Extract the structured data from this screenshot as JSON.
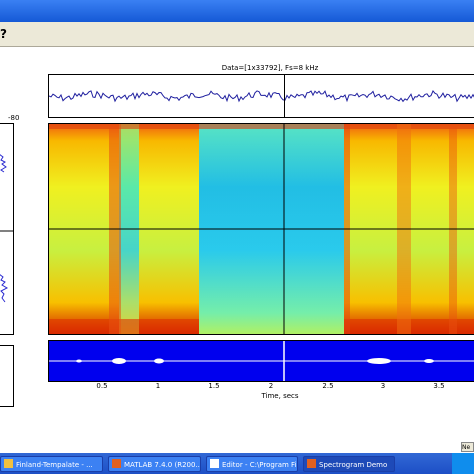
{
  "window": {
    "help_icon": "?"
  },
  "left_panel": {
    "top_label": "-80"
  },
  "waveform": {
    "title": "Data=[1x33792], Fs=8 kHz"
  },
  "bottom": {
    "ticks": [
      "0.5",
      "1",
      "1.5",
      "2",
      "2.5",
      "3",
      "3.5"
    ],
    "xlabel": "Time, secs",
    "nav_label": "Ne"
  },
  "taskbar": {
    "items": [
      {
        "label": "Finland-Tempalate - ...",
        "icon": "folder-icon"
      },
      {
        "label": "MATLAB 7.4.0 (R200...",
        "icon": "matlab-icon"
      },
      {
        "label": "Editor - C:\\Program Fi...",
        "icon": "editor-icon"
      },
      {
        "label": "Spectrogram Demo",
        "icon": "matlab-icon"
      }
    ]
  },
  "colors": {
    "titlebar": "#2a6ce8",
    "taskbar": "#245edb",
    "waveform": "#1f1f9f",
    "overview_bg": "#0000ee"
  }
}
